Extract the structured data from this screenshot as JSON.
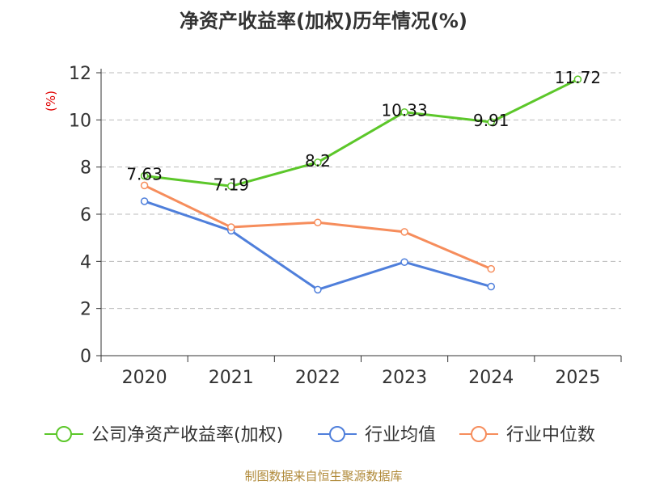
{
  "chart_data": {
    "type": "line",
    "title": "净资产收益率(加权)历年情况(%)",
    "ylabel": "(%)",
    "xlabel": "",
    "categories": [
      "2020",
      "2021",
      "2022",
      "2023",
      "2024",
      "2025"
    ],
    "ylim": [
      0,
      12
    ],
    "yticks": [
      0,
      2,
      4,
      6,
      8,
      10,
      12
    ],
    "grid": true,
    "legend_position": "bottom",
    "series": [
      {
        "name": "公司净资产收益率(加权)",
        "color": "#5cc72a",
        "values": [
          7.63,
          7.19,
          8.2,
          10.33,
          9.91,
          11.72
        ],
        "labels": [
          "7.63",
          "7.19",
          "8.2",
          "10.33",
          "9.91",
          "11.72"
        ]
      },
      {
        "name": "行业均值",
        "color": "#4f7fdb",
        "values": [
          6.55,
          5.3,
          2.8,
          3.97,
          2.93,
          null
        ]
      },
      {
        "name": "行业中位数",
        "color": "#f68d5c",
        "values": [
          7.22,
          5.45,
          5.65,
          5.25,
          3.68,
          null
        ]
      }
    ],
    "source": "制图数据来自恒生聚源数据库"
  }
}
